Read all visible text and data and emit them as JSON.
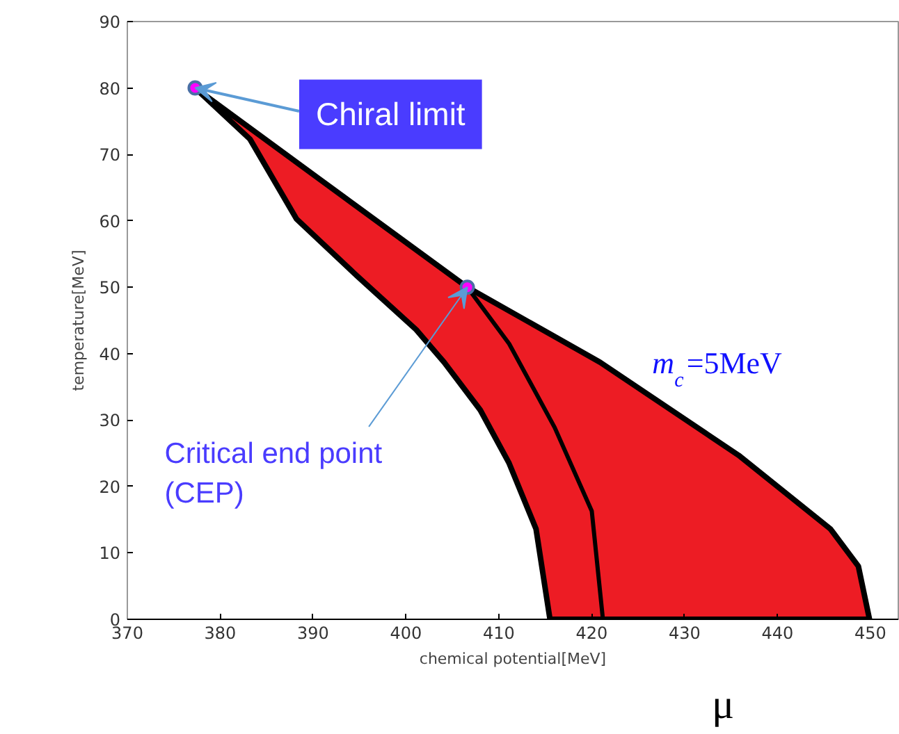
{
  "chart_data": {
    "type": "area",
    "xlabel": "chemical potential[MeV]",
    "ylabel": "temperature[MeV]",
    "xlim": [
      370,
      453
    ],
    "ylim": [
      0,
      90
    ],
    "xticks": [
      370,
      380,
      390,
      400,
      410,
      420,
      430,
      440,
      450
    ],
    "yticks": [
      0,
      10,
      20,
      30,
      40,
      50,
      60,
      70,
      80,
      90
    ],
    "grid": false,
    "series": [
      {
        "color": "#ed1c24",
        "x": [
          377.3,
          383.2,
          388.2,
          394.5,
          401.1,
          404.1,
          408.0,
          411.1,
          414.0,
          415.5,
          449.9,
          448.7,
          445.7,
          435.8,
          420.9,
          406.6,
          393.2,
          377.3
        ],
        "values": [
          80,
          72.3,
          60.3,
          52.0,
          43.6,
          38.7,
          31.5,
          23.5,
          13.6,
          0,
          0,
          8,
          13.6,
          24.7,
          38.7,
          50,
          63.7,
          80
        ]
      },
      {
        "type": "line",
        "color": "#000000",
        "x": [
          406.6,
          411.1,
          416.0,
          420.0,
          421.2
        ],
        "values": [
          50,
          41.5,
          28.9,
          16.3,
          0
        ]
      },
      {
        "type": "scatter",
        "color": "#ff00ff",
        "marker": "circle",
        "x": [
          377.3,
          406.6
        ],
        "values": [
          80,
          50
        ]
      }
    ],
    "annotations": [
      {
        "text": "Chiral limit",
        "x": 377.3,
        "y": 80
      },
      {
        "text": "Critical end point\n(CEP)",
        "x": 406.6,
        "y": 50
      },
      "m$_{c}$=5MeV",
      "μ"
    ]
  }
}
